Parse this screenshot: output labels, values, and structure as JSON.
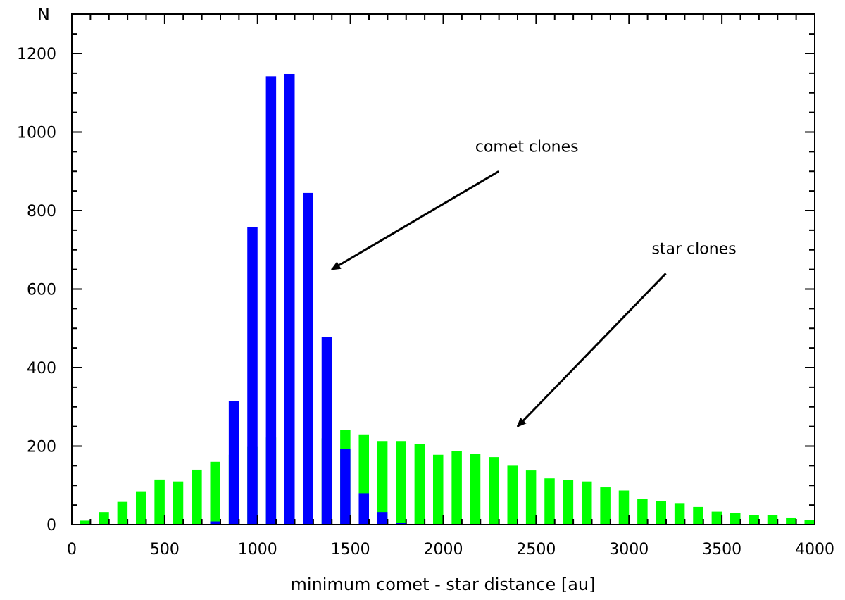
{
  "chart_data": {
    "type": "bar",
    "xlabel": "minimum comet - star distance [au]",
    "ylabel": "N",
    "xlim": [
      0,
      4000
    ],
    "ylim": [
      0,
      1200
    ],
    "x_ticks": [
      0,
      500,
      1000,
      1500,
      2000,
      2500,
      3000,
      3500,
      4000
    ],
    "y_ticks": [
      0,
      200,
      400,
      600,
      800,
      1000,
      1200
    ],
    "bin_width": 100,
    "grid": false,
    "series": [
      {
        "color": "#00ff00",
        "x": [
          0,
          100,
          200,
          300,
          400,
          500,
          600,
          700,
          800,
          900,
          1000,
          1100,
          1200,
          1300,
          1400,
          1500,
          1600,
          1700,
          1800,
          1900,
          2000,
          2100,
          2200,
          2300,
          2400,
          2500,
          2600,
          2700,
          2800,
          2900,
          3000,
          3100,
          3200,
          3300,
          3400,
          3500,
          3600,
          3700,
          3800,
          3900
        ],
        "values": [
          10,
          32,
          58,
          85,
          115,
          110,
          140,
          160,
          178,
          198,
          222,
          218,
          195,
          220,
          242,
          230,
          213,
          213,
          206,
          178,
          188,
          180,
          172,
          150,
          138,
          118,
          114,
          110,
          95,
          87,
          65,
          60,
          55,
          45,
          33,
          30,
          24,
          24,
          18,
          12
        ]
      },
      {
        "color": "#0000ff",
        "x": [
          700,
          800,
          900,
          1000,
          1100,
          1200,
          1300,
          1400,
          1500,
          1600,
          1700
        ],
        "values": [
          8,
          315,
          758,
          1142,
          1148,
          845,
          478,
          193,
          80,
          32,
          5
        ]
      }
    ],
    "annotations": [
      {
        "text": "comet clones",
        "x": 2450,
        "y": 950,
        "arrow_to": [
          1400,
          650
        ]
      },
      {
        "text": "star clones",
        "x": 3350,
        "y": 690,
        "arrow_to": [
          2400,
          250
        ]
      }
    ]
  }
}
